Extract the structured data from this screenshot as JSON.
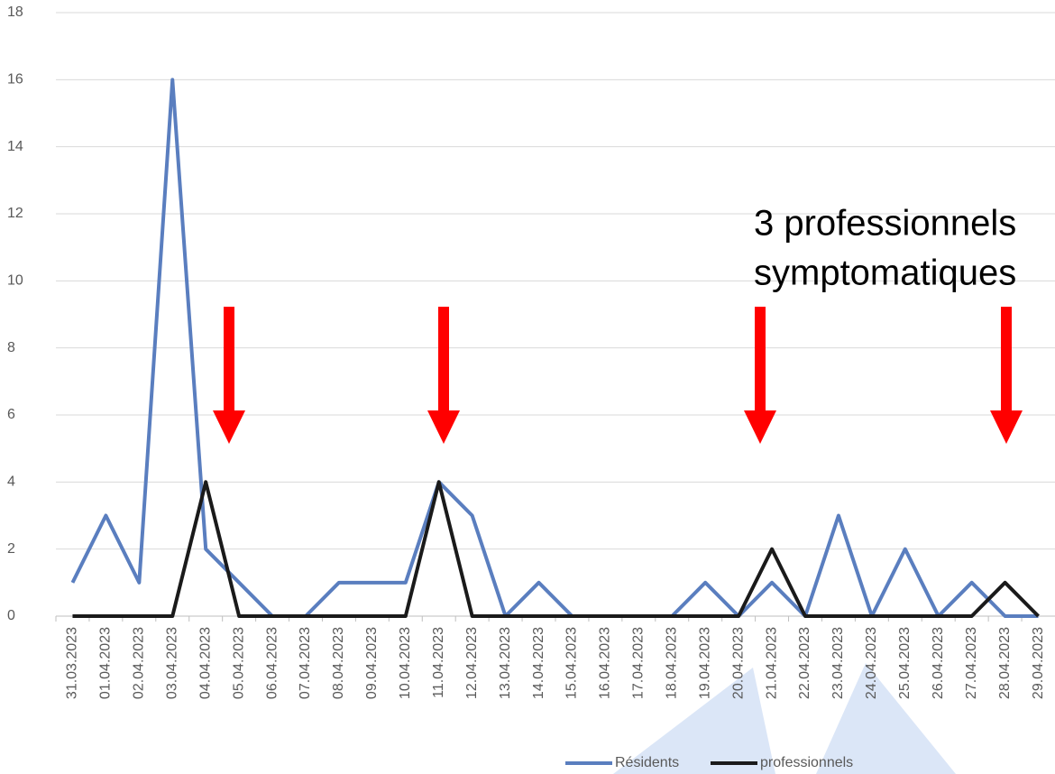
{
  "chart_data": {
    "type": "line",
    "categories": [
      "31.03.2023",
      "01.04.2023",
      "02.04.2023",
      "03.04.2023",
      "04.04.2023",
      "05.04.2023",
      "06.04.2023",
      "07.04.2023",
      "08.04.2023",
      "09.04.2023",
      "10.04.2023",
      "11.04.2023",
      "12.04.2023",
      "13.04.2023",
      "14.04.2023",
      "15.04.2023",
      "16.04.2023",
      "17.04.2023",
      "18.04.2023",
      "19.04.2023",
      "20.04.2023",
      "21.04.2023",
      "22.04.2023",
      "23.04.2023",
      "24.04.2023",
      "25.04.2023",
      "26.04.2023",
      "27.04.2023",
      "28.04.2023",
      "29.04.2023"
    ],
    "series": [
      {
        "name": "Résidents",
        "color": "#5a7ebf",
        "values": [
          1,
          3,
          1,
          16,
          2,
          1,
          0,
          0,
          1,
          1,
          1,
          4,
          3,
          0,
          1,
          0,
          0,
          0,
          0,
          1,
          0,
          1,
          0,
          3,
          0,
          2,
          0,
          1,
          0,
          0
        ]
      },
      {
        "name": "professionnels",
        "color": "#1a1a1a",
        "values": [
          0,
          0,
          0,
          0,
          4,
          0,
          0,
          0,
          0,
          0,
          0,
          4,
          0,
          0,
          0,
          0,
          0,
          0,
          0,
          0,
          0,
          2,
          0,
          0,
          0,
          0,
          0,
          0,
          1,
          0
        ]
      }
    ],
    "annotations": [
      "3 professionnels",
      "symptomatiques"
    ],
    "ylim": [
      0,
      18
    ],
    "yticks": [
      0,
      2,
      4,
      6,
      8,
      10,
      12,
      14,
      16,
      18
    ],
    "grid": true,
    "legend": "bottom"
  }
}
